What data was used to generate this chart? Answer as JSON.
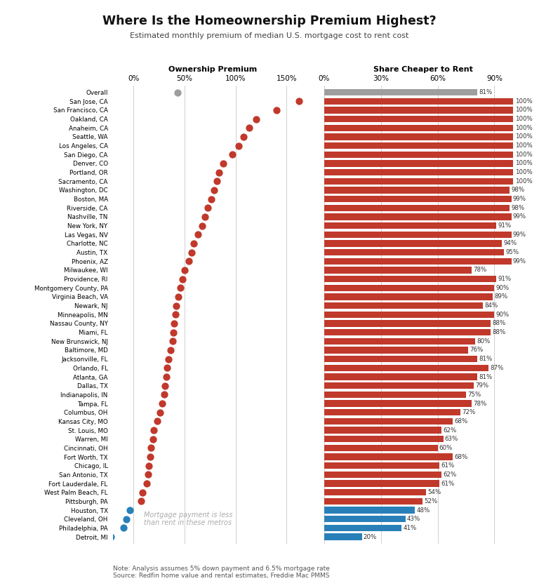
{
  "title": "Where Is the Homeownership Premium Highest?",
  "subtitle": "Estimated monthly premium of median U.S. mortgage cost to rent cost",
  "note": "Note: Analysis assumes 5% down payment and 6.5% mortgage rate\nSource: Redfin home value and rental estimates, Freddie Mac PMMS",
  "cities": [
    "Overall",
    "San Jose, CA",
    "San Francisco, CA",
    "Oakland, CA",
    "Anaheim, CA",
    "Seattle, WA",
    "Los Angeles, CA",
    "San Diego, CA",
    "Denver, CO",
    "Portland, OR",
    "Sacramento, CA",
    "Washington, DC",
    "Boston, MA",
    "Riverside, CA",
    "Nashville, TN",
    "New York, NY",
    "Las Vegas, NV",
    "Charlotte, NC",
    "Austin, TX",
    "Phoenix, AZ",
    "Milwaukee, WI",
    "Providence, RI",
    "Montgomery County, PA",
    "Virginia Beach, VA",
    "Newark, NJ",
    "Minneapolis, MN",
    "Nassau County, NY",
    "Miami, FL",
    "New Brunswick, NJ",
    "Baltimore, MD",
    "Jacksonville, FL",
    "Orlando, FL",
    "Atlanta, GA",
    "Dallas, TX",
    "Indianapolis, IN",
    "Tampa, FL",
    "Columbus, OH",
    "Kansas City, MO",
    "St. Louis, MO",
    "Warren, MI",
    "Cincinnati, OH",
    "Fort Worth, TX",
    "Chicago, IL",
    "San Antonio, TX",
    "Fort Lauderdale, FL",
    "West Palm Beach, FL",
    "Pittsburgh, PA",
    "Houston, TX",
    "Cleveland, OH",
    "Philadelphia, PA",
    "Detroit, MI"
  ],
  "ownership_premium": [
    43,
    162,
    140,
    120,
    113,
    108,
    103,
    97,
    88,
    84,
    82,
    79,
    76,
    73,
    70,
    67,
    63,
    59,
    57,
    54,
    50,
    48,
    46,
    44,
    42,
    41,
    40,
    39,
    38,
    36,
    34,
    33,
    32,
    31,
    30,
    28,
    26,
    23,
    20,
    19,
    17,
    16,
    15,
    14,
    13,
    9,
    7,
    -4,
    -7,
    -10,
    -22
  ],
  "share_cheaper": [
    81,
    100,
    100,
    100,
    100,
    100,
    100,
    100,
    100,
    100,
    100,
    98,
    99,
    98,
    99,
    91,
    99,
    94,
    95,
    99,
    78,
    91,
    90,
    89,
    84,
    90,
    88,
    88,
    80,
    76,
    81,
    87,
    81,
    79,
    75,
    78,
    72,
    68,
    62,
    63,
    60,
    68,
    61,
    62,
    61,
    54,
    52,
    48,
    43,
    41,
    20
  ],
  "dot_colors": [
    "#9e9e9e",
    "#c0392b",
    "#c0392b",
    "#c0392b",
    "#c0392b",
    "#c0392b",
    "#c0392b",
    "#c0392b",
    "#c0392b",
    "#c0392b",
    "#c0392b",
    "#c0392b",
    "#c0392b",
    "#c0392b",
    "#c0392b",
    "#c0392b",
    "#c0392b",
    "#c0392b",
    "#c0392b",
    "#c0392b",
    "#c0392b",
    "#c0392b",
    "#c0392b",
    "#c0392b",
    "#c0392b",
    "#c0392b",
    "#c0392b",
    "#c0392b",
    "#c0392b",
    "#c0392b",
    "#c0392b",
    "#c0392b",
    "#c0392b",
    "#c0392b",
    "#c0392b",
    "#c0392b",
    "#c0392b",
    "#c0392b",
    "#c0392b",
    "#c0392b",
    "#c0392b",
    "#c0392b",
    "#c0392b",
    "#c0392b",
    "#c0392b",
    "#c0392b",
    "#c0392b",
    "#2980b9",
    "#2980b9",
    "#2980b9",
    "#2980b9"
  ],
  "bar_colors": [
    "#9e9e9e",
    "#c0392b",
    "#c0392b",
    "#c0392b",
    "#c0392b",
    "#c0392b",
    "#c0392b",
    "#c0392b",
    "#c0392b",
    "#c0392b",
    "#c0392b",
    "#c0392b",
    "#c0392b",
    "#c0392b",
    "#c0392b",
    "#c0392b",
    "#c0392b",
    "#c0392b",
    "#c0392b",
    "#c0392b",
    "#c0392b",
    "#c0392b",
    "#c0392b",
    "#c0392b",
    "#c0392b",
    "#c0392b",
    "#c0392b",
    "#c0392b",
    "#c0392b",
    "#c0392b",
    "#c0392b",
    "#c0392b",
    "#c0392b",
    "#c0392b",
    "#c0392b",
    "#c0392b",
    "#c0392b",
    "#c0392b",
    "#c0392b",
    "#c0392b",
    "#c0392b",
    "#c0392b",
    "#c0392b",
    "#c0392b",
    "#c0392b",
    "#c0392b",
    "#c0392b",
    "#2980b9",
    "#2980b9",
    "#2980b9",
    "#2980b9"
  ],
  "left_xlim": [
    -20,
    175
  ],
  "right_xlim": [
    0,
    105
  ],
  "left_xticks": [
    0,
    50,
    100,
    150
  ],
  "left_xticklabels": [
    "0%",
    "50%",
    "100%",
    "150%"
  ],
  "right_xticks": [
    0,
    30,
    60,
    90
  ],
  "right_xticklabels": [
    "0%",
    "30%",
    "60%",
    "90%"
  ],
  "background_color": "#ffffff",
  "red": "#c0392b",
  "blue": "#2980b9",
  "gray": "#9e9e9e",
  "annotation_text": "Mortgage payment is less\nthan rent in these metros"
}
